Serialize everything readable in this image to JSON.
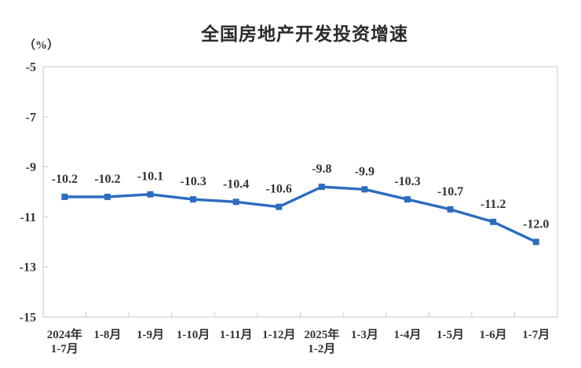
{
  "page": {
    "background": "#ffffff"
  },
  "chart_data": {
    "type": "line",
    "title": "全国房地产开发投资增速",
    "ylabel": "（%）",
    "categories": [
      "2024年\n1-7月",
      "1-8月",
      "1-9月",
      "1-10月",
      "1-11月",
      "1-12月",
      "2025年\n1-2月",
      "1-3月",
      "1-4月",
      "1-5月",
      "1-6月",
      "1-7月"
    ],
    "values": [
      -10.2,
      -10.2,
      -10.1,
      -10.3,
      -10.4,
      -10.6,
      -9.8,
      -9.9,
      -10.3,
      -10.7,
      -11.2,
      -12.0
    ],
    "data_labels": [
      "-10.2",
      "-10.2",
      "-10.1",
      "-10.3",
      "-10.4",
      "-10.6",
      "-9.8",
      "-9.9",
      "-10.3",
      "-10.7",
      "-11.2",
      "-12.0"
    ],
    "ytick_labels": [
      "-5",
      "-7",
      "-9",
      "-11",
      "-13",
      "-15"
    ],
    "yticks": [
      -5,
      -7,
      -9,
      -11,
      -13,
      -15
    ],
    "ylim": [
      -15,
      -5
    ],
    "grid": false,
    "legend": "none",
    "marker": "square",
    "colors": {
      "line": "#2C6CBF",
      "axis": "#c9c9c9",
      "text": "#333333",
      "data_label": "#333333"
    }
  }
}
